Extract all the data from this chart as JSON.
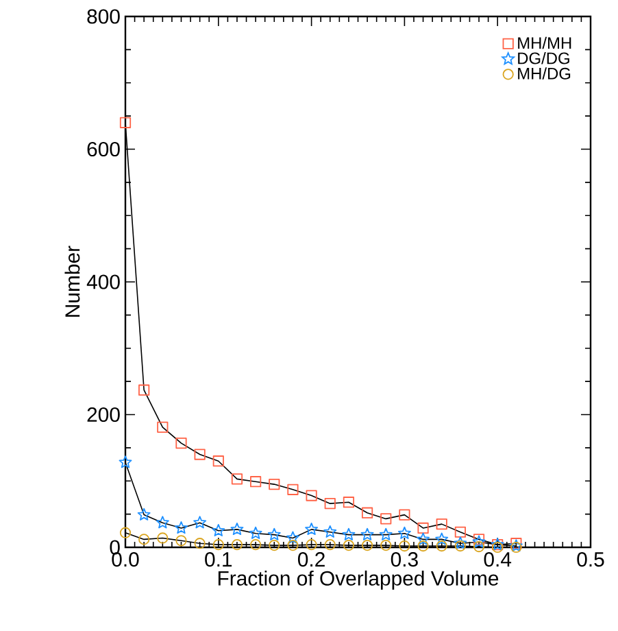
{
  "chart_data": {
    "type": "line",
    "xlabel": "Fraction of Overlapped Volume",
    "ylabel": "Number",
    "x": [
      0,
      0.02,
      0.04,
      0.06,
      0.08,
      0.1,
      0.12,
      0.14,
      0.16,
      0.18,
      0.2,
      0.22,
      0.24,
      0.26,
      0.28,
      0.3,
      0.32,
      0.34,
      0.36,
      0.38,
      0.4,
      0.42
    ],
    "series": [
      {
        "name": "MH/MH",
        "color": "#ff6347",
        "marker": "square",
        "values": [
          640,
          237,
          181,
          157,
          140,
          130,
          103,
          99,
          95,
          87,
          78,
          66,
          68,
          52,
          43,
          49,
          29,
          35,
          23,
          12,
          4,
          6
        ]
      },
      {
        "name": "DG/DG",
        "color": "#1e90ff",
        "marker": "star",
        "values": [
          128,
          49,
          37,
          29,
          37,
          25,
          27,
          21,
          19,
          14,
          27,
          23,
          19,
          19,
          19,
          21,
          12,
          12,
          6,
          8,
          4,
          2
        ]
      },
      {
        "name": "MH/DG",
        "color": "#daa520",
        "marker": "circle",
        "values": [
          22,
          12,
          14,
          10,
          6,
          4,
          4,
          4,
          3,
          3,
          4,
          4,
          3,
          3,
          3,
          2,
          2,
          2,
          2,
          1,
          0,
          0
        ]
      }
    ],
    "xlim": [
      0,
      0.5
    ],
    "ylim": [
      0,
      800
    ],
    "xticks": [
      {
        "value": 0,
        "label": "0.0"
      },
      0.1,
      0.2,
      0.3,
      0.4,
      0.5
    ],
    "yticks": [
      0,
      200,
      400,
      600,
      800
    ],
    "legend": "top right"
  }
}
